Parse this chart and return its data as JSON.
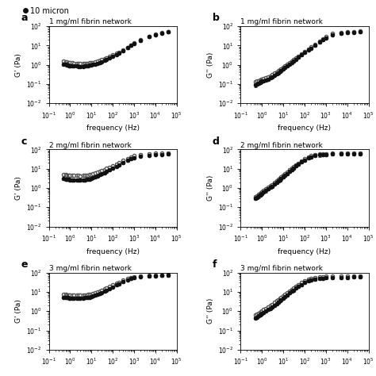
{
  "legend_label": "10 micron",
  "panel_labels": [
    "a",
    "b",
    "c",
    "d",
    "e",
    "f"
  ],
  "titles": [
    "1 mg/ml fibrin network",
    "1 mg/ml fibrin network",
    "2 mg/ml fibrin network",
    "2 mg/ml fibrin network",
    "3 mg/ml fibrin network",
    "3 mg/ml fibrin network"
  ],
  "ylabels": [
    "G' (Pa)",
    "G'' (Pa)",
    "G' (Pa)",
    "G'' (Pa)",
    "G' (Pa)",
    "G'' (Pa)"
  ],
  "show_xlabel": [
    true,
    true,
    true,
    true,
    false,
    false
  ],
  "gprime_1mg": {
    "freq": [
      0.5,
      0.6,
      0.7,
      0.8,
      0.9,
      1.0,
      1.2,
      1.5,
      2.0,
      2.5,
      3.0,
      4.0,
      5.0,
      6.0,
      7.0,
      8.0,
      10.0,
      12.0,
      15.0,
      20.0,
      25.0,
      30.0,
      40.0,
      50.0,
      70.0,
      100.0,
      150.0,
      200.0,
      300.0,
      500.0,
      700.0,
      1000.0,
      2000.0,
      5000.0,
      10000.0,
      20000.0,
      40000.0
    ],
    "open_vals": [
      1.5,
      1.45,
      1.4,
      1.35,
      1.3,
      1.28,
      1.25,
      1.22,
      1.2,
      1.18,
      1.17,
      1.16,
      1.18,
      1.2,
      1.22,
      1.25,
      1.3,
      1.35,
      1.42,
      1.55,
      1.68,
      1.82,
      2.05,
      2.3,
      2.7,
      3.2,
      3.9,
      4.6,
      5.8,
      8.0,
      10.5,
      13.5,
      19.5,
      30.0,
      39.0,
      46.0,
      53.0
    ],
    "filled_vals": [
      1.1,
      1.05,
      1.0,
      0.95,
      0.92,
      0.9,
      0.88,
      0.86,
      0.85,
      0.84,
      0.83,
      0.83,
      0.85,
      0.87,
      0.9,
      0.93,
      0.98,
      1.03,
      1.1,
      1.22,
      1.35,
      1.48,
      1.7,
      1.95,
      2.35,
      2.85,
      3.5,
      4.2,
      5.4,
      7.5,
      10.0,
      12.8,
      18.5,
      28.5,
      37.0,
      44.0,
      50.5
    ],
    "err_open": [
      0.25,
      0.22,
      0.2,
      0.18,
      0.17,
      0.16,
      0.15,
      0.14,
      0.13,
      0.13,
      0.12,
      0.12,
      0.13,
      0.13,
      0.14,
      0.14,
      0.15,
      0.16,
      0.17,
      0.19,
      0.21,
      0.23,
      0.27,
      0.3,
      0.36,
      0.43,
      0.53,
      0.63,
      0.8,
      1.1,
      1.4,
      1.8,
      2.6,
      4.0,
      5.2,
      6.1,
      7.1
    ],
    "err_filled": [
      0.18,
      0.16,
      0.15,
      0.14,
      0.13,
      0.12,
      0.12,
      0.11,
      0.11,
      0.1,
      0.1,
      0.1,
      0.11,
      0.11,
      0.12,
      0.12,
      0.13,
      0.14,
      0.15,
      0.17,
      0.19,
      0.21,
      0.24,
      0.27,
      0.33,
      0.4,
      0.49,
      0.59,
      0.75,
      1.05,
      1.38,
      1.77,
      2.55,
      3.95,
      5.1,
      6.0,
      6.9
    ]
  },
  "gdprime_1mg": {
    "freq": [
      0.5,
      0.6,
      0.7,
      0.8,
      0.9,
      1.0,
      1.2,
      1.5,
      2.0,
      2.5,
      3.0,
      4.0,
      5.0,
      6.0,
      7.0,
      8.0,
      10.0,
      12.0,
      15.0,
      20.0,
      25.0,
      30.0,
      40.0,
      50.0,
      70.0,
      100.0,
      150.0,
      200.0,
      300.0,
      500.0,
      700.0,
      1000.0,
      2000.0,
      5000.0,
      10000.0,
      20000.0,
      40000.0
    ],
    "open_vals": [
      0.13,
      0.14,
      0.15,
      0.16,
      0.17,
      0.18,
      0.19,
      0.21,
      0.24,
      0.27,
      0.3,
      0.36,
      0.42,
      0.48,
      0.55,
      0.62,
      0.75,
      0.88,
      1.05,
      1.3,
      1.55,
      1.82,
      2.3,
      2.8,
      3.8,
      5.0,
      6.8,
      8.5,
      11.5,
      17.0,
      22.5,
      29.0,
      42.0,
      48.0,
      51.0,
      53.0,
      55.0
    ],
    "filled_vals": [
      0.09,
      0.1,
      0.11,
      0.12,
      0.13,
      0.14,
      0.15,
      0.16,
      0.18,
      0.21,
      0.24,
      0.29,
      0.34,
      0.39,
      0.45,
      0.51,
      0.62,
      0.73,
      0.88,
      1.1,
      1.32,
      1.56,
      1.98,
      2.42,
      3.3,
      4.35,
      5.95,
      7.45,
      10.1,
      14.9,
      19.8,
      25.5,
      37.1,
      43.5,
      46.5,
      48.5,
      50.5
    ],
    "err_open": [
      0.03,
      0.03,
      0.03,
      0.03,
      0.03,
      0.03,
      0.03,
      0.04,
      0.04,
      0.04,
      0.05,
      0.05,
      0.06,
      0.07,
      0.08,
      0.09,
      0.1,
      0.12,
      0.14,
      0.18,
      0.21,
      0.25,
      0.32,
      0.39,
      0.52,
      0.69,
      0.93,
      1.17,
      1.59,
      2.35,
      3.1,
      4.0,
      5.8,
      6.6,
      7.0,
      7.3,
      7.6
    ],
    "err_filled": [
      0.02,
      0.02,
      0.02,
      0.02,
      0.02,
      0.02,
      0.02,
      0.03,
      0.03,
      0.03,
      0.04,
      0.04,
      0.05,
      0.06,
      0.07,
      0.08,
      0.09,
      0.1,
      0.12,
      0.15,
      0.18,
      0.22,
      0.28,
      0.34,
      0.46,
      0.61,
      0.83,
      1.04,
      1.41,
      2.08,
      2.77,
      3.57,
      5.19,
      6.09,
      6.51,
      6.79,
      7.07
    ]
  },
  "gprime_2mg": {
    "freq": [
      0.5,
      0.6,
      0.7,
      0.8,
      0.9,
      1.0,
      1.2,
      1.5,
      2.0,
      2.5,
      3.0,
      4.0,
      5.0,
      6.0,
      7.0,
      8.0,
      10.0,
      12.0,
      15.0,
      20.0,
      25.0,
      30.0,
      40.0,
      50.0,
      70.0,
      100.0,
      150.0,
      200.0,
      300.0,
      500.0,
      700.0,
      1000.0,
      2000.0,
      5000.0,
      10000.0,
      20000.0,
      40000.0
    ],
    "open_vals": [
      5.0,
      4.8,
      4.7,
      4.6,
      4.55,
      4.5,
      4.45,
      4.4,
      4.38,
      4.36,
      4.35,
      4.38,
      4.45,
      4.55,
      4.65,
      4.8,
      5.1,
      5.4,
      5.9,
      6.7,
      7.4,
      8.1,
      9.3,
      10.3,
      12.2,
      14.5,
      18.0,
      21.0,
      26.5,
      34.0,
      40.5,
      47.0,
      56.0,
      61.0,
      64.0,
      66.0,
      68.0
    ],
    "filled_vals": [
      3.0,
      2.9,
      2.82,
      2.76,
      2.72,
      2.7,
      2.68,
      2.65,
      2.63,
      2.62,
      2.62,
      2.65,
      2.7,
      2.78,
      2.87,
      2.97,
      3.18,
      3.4,
      3.75,
      4.3,
      4.85,
      5.4,
      6.3,
      7.2,
      8.7,
      10.6,
      13.3,
      15.8,
      20.2,
      26.5,
      32.0,
      37.5,
      46.0,
      51.0,
      54.0,
      56.0,
      58.0
    ],
    "err_open": [
      0.65,
      0.6,
      0.57,
      0.55,
      0.54,
      0.53,
      0.52,
      0.51,
      0.5,
      0.5,
      0.5,
      0.5,
      0.51,
      0.52,
      0.54,
      0.56,
      0.6,
      0.64,
      0.71,
      0.81,
      0.91,
      1.0,
      1.17,
      1.31,
      1.56,
      1.87,
      2.33,
      2.74,
      3.47,
      4.5,
      5.41,
      6.33,
      7.64,
      8.32,
      8.72,
      9.0,
      9.28
    ],
    "err_filled": [
      0.4,
      0.37,
      0.36,
      0.35,
      0.34,
      0.34,
      0.33,
      0.33,
      0.32,
      0.32,
      0.32,
      0.33,
      0.33,
      0.34,
      0.35,
      0.36,
      0.38,
      0.41,
      0.45,
      0.52,
      0.59,
      0.66,
      0.78,
      0.89,
      1.08,
      1.33,
      1.68,
      2.01,
      2.6,
      3.45,
      4.2,
      4.96,
      6.14,
      6.86,
      7.27,
      7.56,
      7.86
    ]
  },
  "gdprime_2mg": {
    "freq": [
      0.5,
      0.6,
      0.7,
      0.8,
      0.9,
      1.0,
      1.2,
      1.5,
      2.0,
      2.5,
      3.0,
      4.0,
      5.0,
      6.0,
      7.0,
      8.0,
      10.0,
      12.0,
      15.0,
      20.0,
      25.0,
      30.0,
      40.0,
      50.0,
      70.0,
      100.0,
      150.0,
      200.0,
      300.0,
      500.0,
      700.0,
      1000.0,
      2000.0,
      5000.0,
      10000.0,
      20000.0,
      40000.0
    ],
    "open_vals": [
      0.35,
      0.4,
      0.46,
      0.52,
      0.58,
      0.65,
      0.75,
      0.88,
      1.08,
      1.28,
      1.5,
      1.9,
      2.32,
      2.75,
      3.18,
      3.62,
      4.5,
      5.4,
      6.75,
      8.78,
      10.7,
      12.5,
      16.0,
      19.3,
      25.5,
      33.0,
      41.5,
      47.5,
      53.5,
      57.5,
      59.5,
      61.0,
      63.0,
      64.5,
      65.5,
      66.0,
      66.5
    ],
    "filled_vals": [
      0.28,
      0.32,
      0.37,
      0.42,
      0.47,
      0.52,
      0.61,
      0.72,
      0.89,
      1.06,
      1.25,
      1.6,
      1.95,
      2.32,
      2.69,
      3.07,
      3.83,
      4.6,
      5.76,
      7.5,
      9.15,
      10.8,
      13.9,
      16.8,
      22.3,
      29.0,
      36.6,
      42.2,
      47.8,
      52.0,
      54.2,
      55.8,
      58.0,
      59.5,
      60.5,
      61.2,
      62.0
    ],
    "err_open": [
      0.06,
      0.07,
      0.08,
      0.09,
      0.1,
      0.11,
      0.13,
      0.15,
      0.18,
      0.22,
      0.26,
      0.33,
      0.4,
      0.48,
      0.55,
      0.63,
      0.78,
      0.94,
      1.17,
      1.53,
      1.86,
      2.18,
      2.8,
      3.37,
      4.46,
      5.78,
      7.27,
      8.33,
      9.4,
      10.1,
      10.5,
      10.8,
      11.1,
      11.4,
      11.6,
      11.7,
      11.8
    ],
    "err_filled": [
      0.05,
      0.06,
      0.07,
      0.08,
      0.09,
      0.1,
      0.11,
      0.13,
      0.16,
      0.19,
      0.23,
      0.29,
      0.36,
      0.43,
      0.5,
      0.57,
      0.71,
      0.86,
      1.07,
      1.4,
      1.71,
      2.02,
      2.6,
      3.15,
      4.19,
      5.45,
      6.87,
      7.9,
      8.93,
      9.7,
      10.1,
      10.5,
      10.9,
      11.2,
      11.4,
      11.6,
      11.7
    ]
  },
  "gprime_3mg": {
    "freq": [
      0.5,
      0.6,
      0.7,
      0.8,
      0.9,
      1.0,
      1.2,
      1.5,
      2.0,
      2.5,
      3.0,
      4.0,
      5.0,
      6.0,
      7.0,
      8.0,
      10.0,
      12.0,
      15.0,
      20.0,
      25.0,
      30.0,
      40.0,
      50.0,
      70.0,
      100.0,
      150.0,
      200.0,
      300.0,
      500.0,
      700.0,
      1000.0,
      2000.0,
      5000.0,
      10000.0,
      20000.0,
      40000.0
    ],
    "open_vals": [
      7.5,
      7.3,
      7.1,
      7.0,
      6.9,
      6.85,
      6.8,
      6.75,
      6.72,
      6.7,
      6.72,
      6.8,
      6.95,
      7.1,
      7.3,
      7.5,
      7.9,
      8.4,
      9.1,
      10.2,
      11.2,
      12.2,
      14.0,
      15.7,
      18.8,
      22.5,
      27.8,
      32.5,
      40.0,
      49.5,
      56.0,
      62.0,
      69.0,
      73.0,
      75.0,
      77.0,
      78.5
    ],
    "filled_vals": [
      5.2,
      5.1,
      5.0,
      4.95,
      4.9,
      4.88,
      4.85,
      4.82,
      4.8,
      4.79,
      4.8,
      4.85,
      4.93,
      5.03,
      5.15,
      5.3,
      5.6,
      6.0,
      6.6,
      7.5,
      8.4,
      9.3,
      10.9,
      12.3,
      15.0,
      18.2,
      22.8,
      27.0,
      33.5,
      42.0,
      48.0,
      54.0,
      61.5,
      66.0,
      68.5,
      70.5,
      72.0
    ],
    "err_open": [
      1.0,
      0.96,
      0.93,
      0.91,
      0.9,
      0.89,
      0.88,
      0.87,
      0.86,
      0.86,
      0.86,
      0.88,
      0.9,
      0.92,
      0.95,
      0.98,
      1.03,
      1.09,
      1.19,
      1.34,
      1.48,
      1.61,
      1.86,
      2.09,
      2.52,
      3.03,
      3.76,
      4.44,
      5.51,
      6.9,
      7.89,
      8.84,
      9.99,
      10.7,
      11.1,
      11.5,
      11.8
    ],
    "err_filled": [
      0.7,
      0.67,
      0.65,
      0.64,
      0.63,
      0.63,
      0.62,
      0.62,
      0.61,
      0.61,
      0.62,
      0.62,
      0.63,
      0.65,
      0.66,
      0.68,
      0.72,
      0.77,
      0.85,
      0.97,
      1.09,
      1.21,
      1.42,
      1.61,
      1.97,
      2.4,
      3.02,
      3.59,
      4.49,
      5.73,
      6.54,
      7.38,
      8.52,
      9.22,
      9.63,
      9.99,
      10.3
    ]
  },
  "gdprime_3mg": {
    "freq": [
      0.5,
      0.6,
      0.7,
      0.8,
      0.9,
      1.0,
      1.2,
      1.5,
      2.0,
      2.5,
      3.0,
      4.0,
      5.0,
      6.0,
      7.0,
      8.0,
      10.0,
      12.0,
      15.0,
      20.0,
      25.0,
      30.0,
      40.0,
      50.0,
      70.0,
      100.0,
      150.0,
      200.0,
      300.0,
      500.0,
      700.0,
      1000.0,
      2000.0,
      5000.0,
      10000.0,
      20000.0,
      40000.0
    ],
    "open_vals": [
      0.65,
      0.72,
      0.8,
      0.88,
      0.96,
      1.05,
      1.2,
      1.4,
      1.68,
      1.96,
      2.25,
      2.82,
      3.38,
      3.94,
      4.5,
      5.06,
      6.18,
      7.3,
      9.0,
      11.5,
      13.8,
      16.0,
      20.0,
      23.8,
      31.0,
      39.5,
      47.5,
      52.5,
      57.0,
      60.5,
      62.5,
      64.0,
      66.0,
      67.5,
      68.5,
      69.0,
      69.5
    ],
    "filled_vals": [
      0.45,
      0.5,
      0.56,
      0.62,
      0.68,
      0.75,
      0.86,
      1.0,
      1.21,
      1.42,
      1.64,
      2.07,
      2.5,
      2.93,
      3.37,
      3.81,
      4.68,
      5.56,
      6.87,
      8.82,
      10.6,
      12.4,
      15.6,
      18.7,
      24.4,
      31.3,
      37.9,
      42.2,
      46.3,
      49.7,
      51.7,
      53.3,
      55.5,
      57.0,
      58.0,
      58.8,
      59.5
    ],
    "err_open": [
      0.09,
      0.1,
      0.11,
      0.12,
      0.13,
      0.14,
      0.16,
      0.19,
      0.23,
      0.27,
      0.31,
      0.39,
      0.47,
      0.55,
      0.63,
      0.71,
      0.87,
      1.03,
      1.27,
      1.62,
      1.95,
      2.27,
      2.84,
      3.38,
      4.41,
      5.65,
      6.81,
      7.57,
      8.28,
      8.87,
      9.22,
      9.51,
      9.9,
      10.2,
      10.4,
      10.5,
      10.6
    ],
    "err_filled": [
      0.07,
      0.08,
      0.09,
      0.1,
      0.11,
      0.12,
      0.14,
      0.16,
      0.2,
      0.23,
      0.27,
      0.34,
      0.41,
      0.48,
      0.55,
      0.63,
      0.77,
      0.92,
      1.13,
      1.46,
      1.76,
      2.06,
      2.6,
      3.13,
      4.1,
      5.28,
      6.42,
      7.17,
      7.92,
      8.59,
      8.99,
      9.34,
      9.8,
      10.1,
      10.3,
      10.5,
      10.7
    ]
  },
  "open_color": "#555555",
  "filled_color": "#111111",
  "background_color": "#ffffff",
  "marker_size": 3.0,
  "capsize": 1.2,
  "linewidth_err": 0.5
}
